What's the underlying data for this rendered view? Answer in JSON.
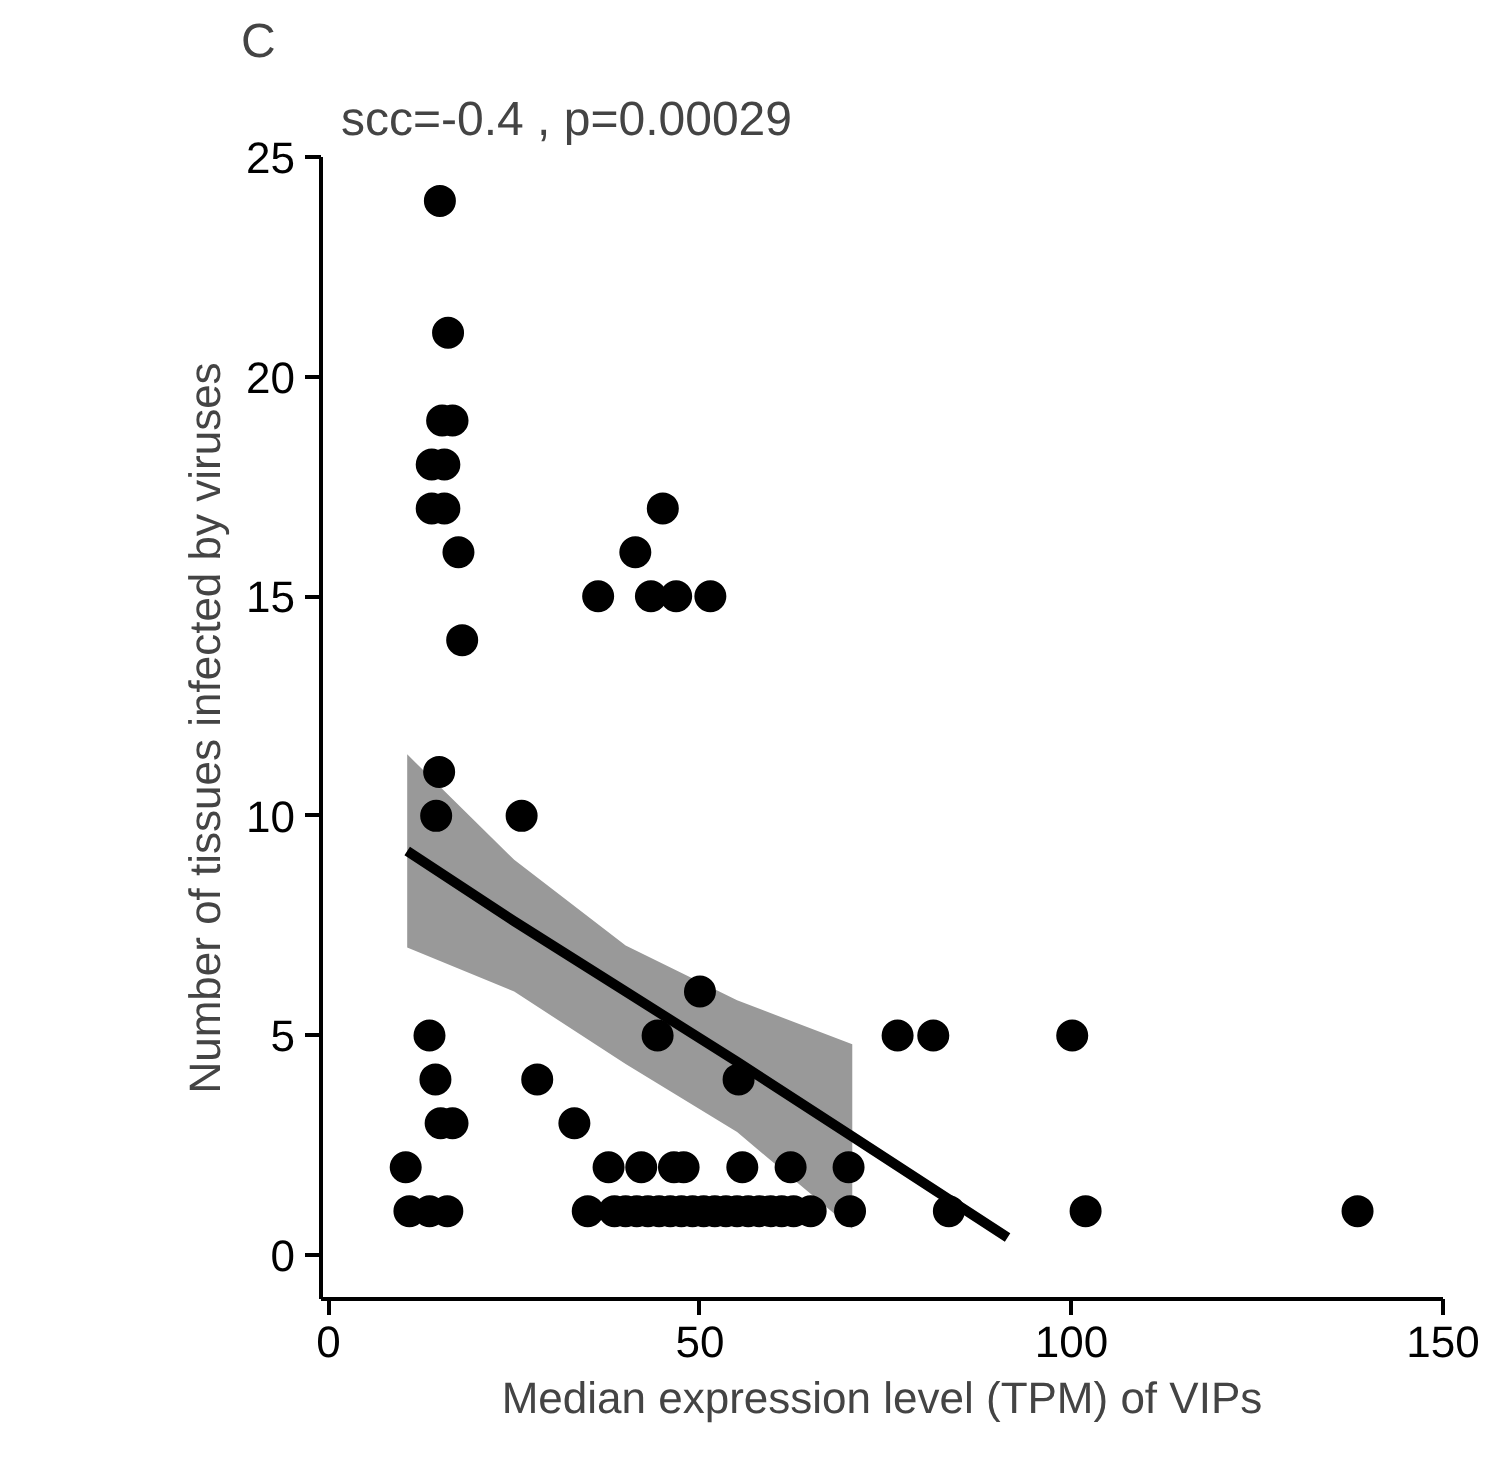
{
  "chart_data": {
    "type": "scatter",
    "xlabel": "Median expression level (TPM) of VIPs",
    "ylabel": "Number of tissues infected by viruses",
    "annotations": [
      "C",
      "scc=-0.4 , p=0.00029"
    ],
    "xlim": [
      -1,
      150
    ],
    "ylim": [
      -1,
      25
    ],
    "xticks": [
      0,
      50,
      100,
      150
    ],
    "yticks": [
      0,
      5,
      10,
      15,
      20,
      25
    ],
    "grid": false,
    "marker": "circle",
    "series": [
      {
        "color": "#000000",
        "x": [
          15.0,
          16.1,
          15.3,
          16.7,
          13.9,
          15.6,
          13.9,
          15.6,
          45.0,
          17.5,
          41.3,
          36.3,
          43.4,
          46.8,
          51.4,
          18.0,
          14.9,
          14.5,
          26.0,
          50.0,
          13.6,
          44.3,
          76.6,
          81.4,
          100.1,
          14.4,
          28.1,
          55.2,
          15.1,
          16.7,
          33.1,
          10.4,
          37.7,
          42.1,
          46.5,
          47.8,
          55.7,
          62.2,
          70.0,
          10.9,
          13.6,
          16.0,
          34.9,
          38.5,
          40.0,
          41.5,
          43.0,
          44.5,
          46.0,
          47.5,
          49.0,
          50.5,
          52.0,
          53.5,
          55.0,
          56.5,
          58.0,
          59.5,
          61.0,
          62.6,
          64.9,
          70.2,
          83.5,
          101.9,
          138.5
        ],
        "values": [
          24,
          21,
          19,
          19,
          18,
          18,
          17,
          17,
          17,
          16,
          16,
          15,
          15,
          15,
          15,
          14,
          11,
          10,
          10,
          6,
          5,
          5,
          5,
          5,
          5,
          4,
          4,
          4,
          3,
          3,
          3,
          2,
          2,
          2,
          2,
          2,
          2,
          2,
          2,
          1,
          1,
          1,
          1,
          1,
          1,
          1,
          1,
          1,
          1,
          1,
          1,
          1,
          1,
          1,
          1,
          1,
          1,
          1,
          1,
          1,
          1,
          1,
          1,
          1,
          1
        ]
      },
      {
        "type": "line",
        "marker": "none",
        "color": "#000000",
        "x": [
          10.6,
          25,
          40,
          55,
          70.5,
          91.4
        ],
        "values": [
          9.2,
          7.6,
          6.0,
          4.4,
          2.7,
          0.4
        ],
        "lower": [
          7.0,
          6.0,
          4.35,
          2.8,
          0.6,
          null
        ],
        "upper": [
          11.4,
          9.0,
          7.05,
          5.8,
          4.8,
          null
        ]
      }
    ]
  }
}
